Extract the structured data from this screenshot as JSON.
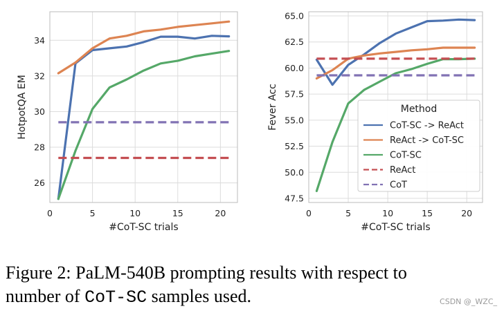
{
  "chart_data": [
    {
      "type": "line",
      "id": "hotpot",
      "title": "",
      "xlabel": "#CoT-SC trials",
      "ylabel": "HotpotQA EM",
      "xlim": [
        0,
        22
      ],
      "ylim": [
        24.9,
        35.6
      ],
      "xticks": [
        0,
        5,
        10,
        15,
        20
      ],
      "yticks": [
        26,
        28,
        30,
        32,
        34
      ],
      "grid": true,
      "series": [
        {
          "name": "CoT-SC -> ReAct",
          "color": "#4c72b0",
          "dashed": false,
          "x": [
            1,
            3,
            5,
            7,
            9,
            11,
            13,
            15,
            17,
            19,
            21
          ],
          "y": [
            25.1,
            32.7,
            33.45,
            33.55,
            33.65,
            33.9,
            34.2,
            34.2,
            34.1,
            34.25,
            34.22
          ]
        },
        {
          "name": "ReAct -> CoT-SC",
          "color": "#dd8452",
          "dashed": false,
          "x": [
            1,
            3,
            5,
            7,
            9,
            11,
            13,
            15,
            17,
            19,
            21
          ],
          "y": [
            32.15,
            32.75,
            33.55,
            34.1,
            34.25,
            34.5,
            34.6,
            34.75,
            34.85,
            34.95,
            35.05
          ]
        },
        {
          "name": "CoT-SC",
          "color": "#55a868",
          "dashed": false,
          "x": [
            1,
            3,
            5,
            7,
            9,
            11,
            13,
            15,
            17,
            19,
            21
          ],
          "y": [
            25.1,
            27.8,
            30.15,
            31.35,
            31.8,
            32.3,
            32.7,
            32.85,
            33.1,
            33.25,
            33.4
          ]
        },
        {
          "name": "ReAct",
          "color": "#c44e52",
          "dashed": true,
          "x": [
            1,
            21
          ],
          "y": [
            27.4,
            27.4
          ]
        },
        {
          "name": "CoT",
          "color": "#8172b3",
          "dashed": true,
          "x": [
            1,
            21
          ],
          "y": [
            29.4,
            29.4
          ]
        }
      ]
    },
    {
      "type": "line",
      "id": "fever",
      "title": "",
      "xlabel": "#CoT-SC trials",
      "ylabel": "Fever Acc",
      "xlim": [
        0,
        22
      ],
      "ylim": [
        47.1,
        65.4
      ],
      "xticks": [
        0,
        5,
        10,
        15,
        20
      ],
      "yticks": [
        47.5,
        50.0,
        52.5,
        55.0,
        57.5,
        60.0,
        62.5,
        65.0
      ],
      "grid": true,
      "legend": {
        "title": "Method",
        "placement": "center-right"
      },
      "series": [
        {
          "name": "CoT-SC -> ReAct",
          "color": "#4c72b0",
          "dashed": false,
          "x": [
            1,
            3,
            5,
            7,
            9,
            11,
            13,
            15,
            17,
            19,
            21
          ],
          "y": [
            60.8,
            58.4,
            60.3,
            61.3,
            62.4,
            63.3,
            63.9,
            64.5,
            64.55,
            64.65,
            64.6
          ]
        },
        {
          "name": "ReAct -> CoT-SC",
          "color": "#dd8452",
          "dashed": false,
          "x": [
            1,
            3,
            5,
            7,
            9,
            11,
            13,
            15,
            17,
            19,
            21
          ],
          "y": [
            59.0,
            59.8,
            60.9,
            61.2,
            61.4,
            61.55,
            61.7,
            61.8,
            61.95,
            61.95,
            61.95
          ]
        },
        {
          "name": "CoT-SC",
          "color": "#55a868",
          "dashed": false,
          "x": [
            1,
            3,
            5,
            7,
            9,
            11,
            13,
            15,
            17,
            19,
            21
          ],
          "y": [
            48.2,
            52.9,
            56.6,
            57.9,
            58.7,
            59.5,
            59.9,
            60.4,
            60.85,
            60.85,
            60.9
          ]
        },
        {
          "name": "ReAct",
          "color": "#c44e52",
          "dashed": true,
          "x": [
            1,
            21
          ],
          "y": [
            60.9,
            60.9
          ]
        },
        {
          "name": "CoT",
          "color": "#8172b3",
          "dashed": true,
          "x": [
            1,
            21
          ],
          "y": [
            59.3,
            59.3
          ]
        }
      ]
    }
  ],
  "caption": {
    "prefix": "Figure 2: PaLM-540B prompting results with respect to",
    "line2_before": "number of ",
    "code": "CoT-SC",
    "line2_after": " samples used."
  },
  "watermark": "CSDN @_WZC_"
}
